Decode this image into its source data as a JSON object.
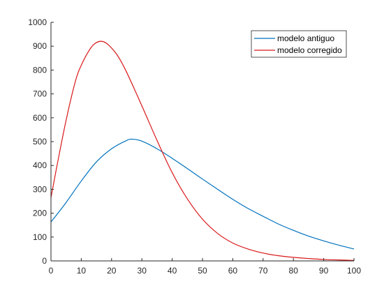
{
  "chart_data": {
    "type": "line",
    "title": "",
    "xlabel": "",
    "ylabel": "",
    "xlim": [
      0,
      100
    ],
    "ylim": [
      0,
      1000
    ],
    "xticks": [
      "0",
      "10",
      "20",
      "30",
      "40",
      "50",
      "60",
      "70",
      "80",
      "90",
      "100"
    ],
    "yticks": [
      "0",
      "100",
      "200",
      "300",
      "400",
      "500",
      "600",
      "700",
      "800",
      "900",
      "1000"
    ],
    "grid": false,
    "legend_position": "top-right",
    "series": [
      {
        "name": "modelo antiguo",
        "color": "#0072BD",
        "x": [
          0,
          5,
          10,
          15,
          20,
          25,
          27,
          30,
          35,
          40,
          45,
          50,
          55,
          60,
          65,
          70,
          75,
          80,
          85,
          90,
          95,
          100
        ],
        "values": [
          163,
          245,
          335,
          415,
          470,
          505,
          510,
          502,
          470,
          430,
          387,
          343,
          300,
          258,
          220,
          187,
          155,
          128,
          104,
          84,
          66,
          50
        ]
      },
      {
        "name": "modelo corregido",
        "color": "#D9181A",
        "x": [
          0,
          2,
          5,
          8,
          10,
          13,
          15,
          17,
          19,
          22,
          25,
          30,
          35,
          40,
          45,
          50,
          55,
          60,
          65,
          70,
          75,
          80,
          85,
          90,
          95,
          100
        ],
        "values": [
          265,
          400,
          590,
          750,
          820,
          890,
          915,
          920,
          905,
          860,
          790,
          650,
          505,
          370,
          260,
          175,
          115,
          75,
          50,
          33,
          22,
          15,
          10,
          6,
          4,
          2
        ]
      }
    ]
  }
}
